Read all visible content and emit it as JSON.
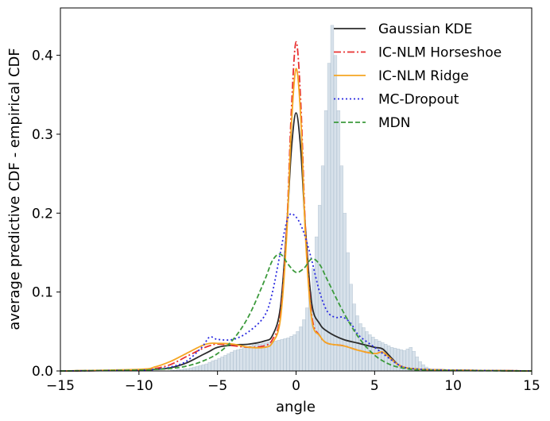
{
  "chart_data": {
    "type": "line",
    "title": "",
    "xlabel": "angle",
    "ylabel": "average predictive CDF - empirical CDF",
    "xlim": [
      -15,
      15
    ],
    "ylim": [
      0,
      0.46
    ],
    "xticks": [
      -15,
      -10,
      -5,
      0,
      5,
      10,
      15
    ],
    "xtick_labels": [
      "−15",
      "−10",
      "−5",
      "0",
      "5",
      "10",
      "15"
    ],
    "yticks": [
      0.0,
      0.1,
      0.2,
      0.3,
      0.4
    ],
    "ytick_labels": [
      "0.0",
      "0.1",
      "0.2",
      "0.3",
      "0.4"
    ],
    "grid": false,
    "legend": "top-right",
    "histogram": {
      "color": "#b7c9d8",
      "bin_width": 0.2,
      "start": -8.0,
      "values": [
        0.001,
        0.001,
        0.002,
        0.002,
        0.003,
        0.003,
        0.004,
        0.005,
        0.006,
        0.007,
        0.008,
        0.009,
        0.011,
        0.013,
        0.014,
        0.016,
        0.018,
        0.02,
        0.022,
        0.024,
        0.026,
        0.027,
        0.028,
        0.03,
        0.031,
        0.032,
        0.033,
        0.034,
        0.034,
        0.035,
        0.036,
        0.037,
        0.038,
        0.038,
        0.039,
        0.04,
        0.041,
        0.042,
        0.044,
        0.046,
        0.05,
        0.056,
        0.065,
        0.08,
        0.1,
        0.13,
        0.17,
        0.21,
        0.26,
        0.33,
        0.39,
        0.438,
        0.4,
        0.33,
        0.26,
        0.2,
        0.15,
        0.11,
        0.085,
        0.07,
        0.06,
        0.055,
        0.05,
        0.046,
        0.043,
        0.04,
        0.038,
        0.036,
        0.034,
        0.032,
        0.03,
        0.029,
        0.028,
        0.027,
        0.026,
        0.028,
        0.03,
        0.025,
        0.018,
        0.012,
        0.008,
        0.005,
        0.003,
        0.002
      ]
    },
    "series": [
      {
        "name": "Gaussian KDE",
        "color": "#2b2b2b",
        "dash": "solid",
        "x": [
          -15,
          -10,
          -9,
          -8,
          -7,
          -6,
          -5.5,
          -5,
          -4,
          -3,
          -2,
          -1.5,
          -1,
          -0.6,
          -0.3,
          0,
          0.3,
          0.6,
          1,
          1.5,
          2,
          3,
          4,
          5,
          5.5,
          6,
          6.5,
          7,
          8,
          10,
          15
        ],
        "y": [
          0,
          0.001,
          0.002,
          0.004,
          0.01,
          0.02,
          0.025,
          0.03,
          0.033,
          0.034,
          0.038,
          0.045,
          0.08,
          0.18,
          0.28,
          0.327,
          0.28,
          0.18,
          0.085,
          0.06,
          0.05,
          0.04,
          0.035,
          0.03,
          0.028,
          0.018,
          0.008,
          0.004,
          0.002,
          0.001,
          0
        ]
      },
      {
        "name": "IC-NLM Horseshoe",
        "color": "#e83030",
        "dash": "dashdot",
        "x": [
          -15,
          -10,
          -9,
          -8,
          -7,
          -6,
          -5.5,
          -5,
          -4,
          -3,
          -2,
          -1.5,
          -1,
          -0.6,
          -0.3,
          0,
          0.3,
          0.6,
          1,
          1.5,
          2,
          3,
          4,
          5,
          5.5,
          6,
          6.5,
          7,
          8,
          10,
          15
        ],
        "y": [
          0,
          0.001,
          0.003,
          0.008,
          0.018,
          0.028,
          0.032,
          0.034,
          0.032,
          0.03,
          0.032,
          0.04,
          0.07,
          0.18,
          0.33,
          0.417,
          0.34,
          0.18,
          0.07,
          0.045,
          0.035,
          0.032,
          0.026,
          0.022,
          0.024,
          0.016,
          0.008,
          0.004,
          0.002,
          0.001,
          0
        ]
      },
      {
        "name": "IC-NLM Ridge",
        "color": "#f5a623",
        "dash": "solid",
        "x": [
          -15,
          -10,
          -9,
          -8,
          -7,
          -6,
          -5.5,
          -5,
          -4,
          -3,
          -2,
          -1.5,
          -1,
          -0.6,
          -0.3,
          0,
          0.3,
          0.6,
          1,
          1.5,
          2,
          3,
          4,
          5,
          5.5,
          6,
          6.5,
          7,
          8,
          10,
          15
        ],
        "y": [
          0,
          0.002,
          0.005,
          0.012,
          0.022,
          0.032,
          0.035,
          0.035,
          0.034,
          0.03,
          0.03,
          0.036,
          0.065,
          0.17,
          0.31,
          0.383,
          0.32,
          0.17,
          0.065,
          0.045,
          0.035,
          0.032,
          0.026,
          0.022,
          0.024,
          0.016,
          0.008,
          0.004,
          0.002,
          0.001,
          0
        ]
      },
      {
        "name": "MC-Dropout",
        "color": "#2a2ae0",
        "dash": "dotted",
        "x": [
          -15,
          -10,
          -9,
          -8,
          -7,
          -6,
          -5.5,
          -5,
          -4,
          -3,
          -2,
          -1.5,
          -1,
          -0.5,
          0,
          0.5,
          1,
          1.5,
          2,
          2.5,
          3,
          3.5,
          4,
          5,
          6,
          6.5,
          7,
          8,
          10,
          15
        ],
        "y": [
          0,
          0.001,
          0.002,
          0.005,
          0.012,
          0.03,
          0.043,
          0.04,
          0.04,
          0.05,
          0.07,
          0.1,
          0.15,
          0.195,
          0.195,
          0.175,
          0.14,
          0.1,
          0.075,
          0.068,
          0.068,
          0.06,
          0.045,
          0.03,
          0.015,
          0.008,
          0.004,
          0.002,
          0.001,
          0
        ]
      },
      {
        "name": "MDN",
        "color": "#3c9a3c",
        "dash": "dashed",
        "x": [
          -15,
          -10,
          -9,
          -8,
          -7,
          -6,
          -5,
          -4,
          -3,
          -2,
          -1.5,
          -1,
          -0.5,
          0,
          0.5,
          1,
          1.5,
          2,
          3,
          4,
          5,
          6,
          7,
          8,
          10,
          15
        ],
        "y": [
          0,
          0.001,
          0.002,
          0.003,
          0.006,
          0.012,
          0.022,
          0.04,
          0.07,
          0.115,
          0.14,
          0.148,
          0.135,
          0.125,
          0.13,
          0.142,
          0.135,
          0.115,
          0.075,
          0.042,
          0.02,
          0.008,
          0.003,
          0.001,
          0.0005,
          0
        ]
      }
    ]
  }
}
